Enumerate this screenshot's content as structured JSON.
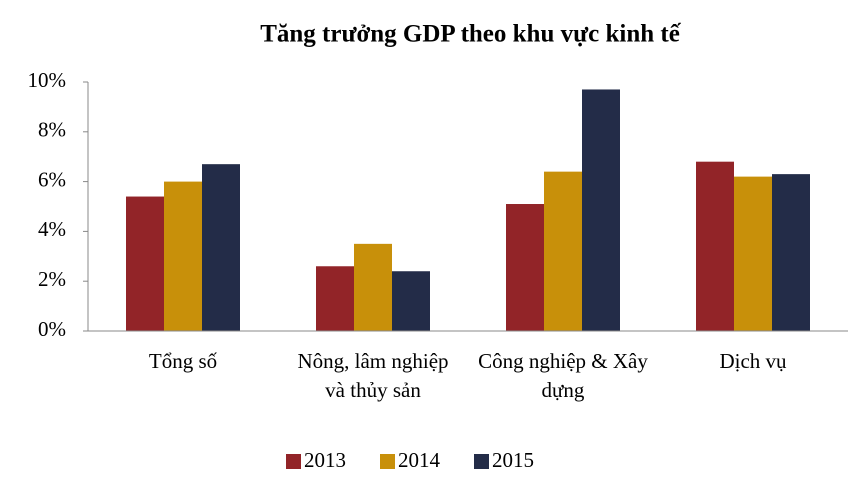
{
  "chart_data": {
    "type": "bar",
    "title": "Tăng trưởng GDP theo khu vực kinh tế",
    "categories": [
      "Tổng số",
      "Nông, lâm nghiệp và thủy sản",
      "Công nghiệp & Xây dựng",
      "Dịch vụ"
    ],
    "series": [
      {
        "name": "2013",
        "color": "#922428",
        "values": [
          5.4,
          2.6,
          5.1,
          6.8
        ]
      },
      {
        "name": "2014",
        "color": "#c8900a",
        "values": [
          6.0,
          3.5,
          6.4,
          6.2
        ]
      },
      {
        "name": "2015",
        "color": "#232c48",
        "values": [
          6.7,
          2.4,
          9.7,
          6.3
        ]
      }
    ],
    "ylim": [
      0,
      10
    ],
    "yticks": [
      {
        "value": 0,
        "label": "0%"
      },
      {
        "value": 2,
        "label": "2%"
      },
      {
        "value": 4,
        "label": "4%"
      },
      {
        "value": 6,
        "label": "6%"
      },
      {
        "value": 8,
        "label": "8%"
      },
      {
        "value": 10,
        "label": "10%"
      }
    ],
    "grid": false,
    "legend": "bottom"
  }
}
